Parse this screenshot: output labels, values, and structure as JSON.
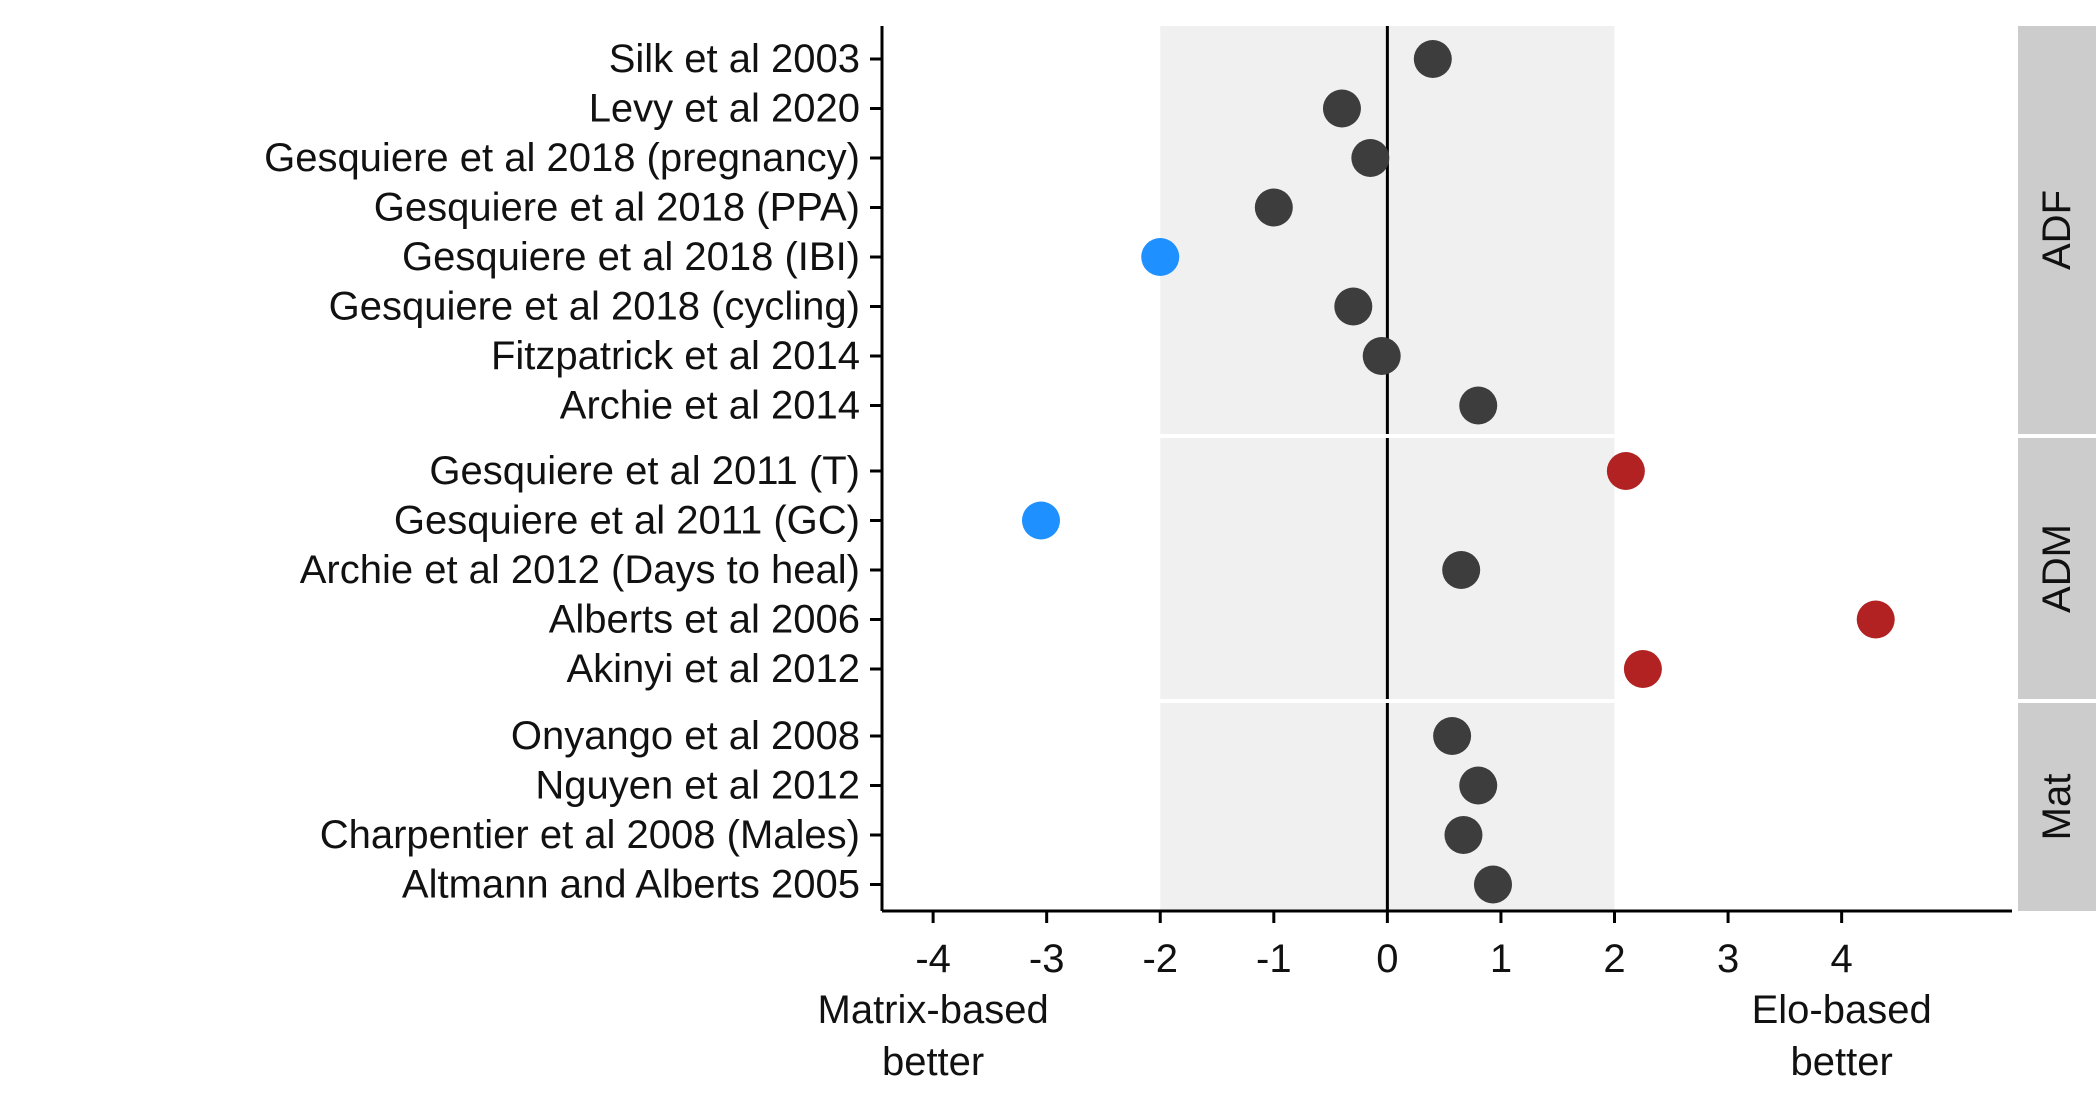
{
  "chart_data": {
    "type": "scatter",
    "orientation": "horizontal",
    "xlim": [
      -4.45,
      5.5
    ],
    "xticks": [
      -4,
      -3,
      -2,
      -1,
      0,
      1,
      2,
      3,
      4
    ],
    "tick_labels": [
      "-4",
      "-3",
      "-2",
      "-1",
      "0",
      "1",
      "2",
      "3",
      "4"
    ],
    "shaded_band": [
      -2,
      2
    ],
    "reference_line": 0,
    "annotations": {
      "left": [
        "Matrix-based",
        "better"
      ],
      "right": [
        "Elo-based",
        "better"
      ]
    },
    "colors": {
      "neutral": "#3d3d3d",
      "matrix_better": "#1e90ff",
      "elo_better": "#b22222",
      "band": "#f0f0f0",
      "strip": "#cccccc"
    },
    "panels": [
      {
        "strip_label": "ADF",
        "rows": [
          {
            "label": "Silk et al 2003",
            "value": 0.4,
            "group": "neutral"
          },
          {
            "label": "Levy et al 2020",
            "value": -0.4,
            "group": "neutral"
          },
          {
            "label": "Gesquiere et al 2018 (pregnancy)",
            "value": -0.15,
            "group": "neutral"
          },
          {
            "label": "Gesquiere et al 2018 (PPA)",
            "value": -1.0,
            "group": "neutral"
          },
          {
            "label": "Gesquiere et al 2018 (IBI)",
            "value": -2.0,
            "group": "matrix_better"
          },
          {
            "label": "Gesquiere et al 2018 (cycling)",
            "value": -0.3,
            "group": "neutral"
          },
          {
            "label": "Fitzpatrick et al 2014",
            "value": -0.05,
            "group": "neutral"
          },
          {
            "label": "Archie et al 2014",
            "value": 0.8,
            "group": "neutral"
          }
        ]
      },
      {
        "strip_label": "ADM",
        "rows": [
          {
            "label": "Gesquiere et al 2011 (T)",
            "value": 2.1,
            "group": "elo_better"
          },
          {
            "label": "Gesquiere et al 2011 (GC)",
            "value": -3.05,
            "group": "matrix_better"
          },
          {
            "label": "Archie et al 2012 (Days to heal)",
            "value": 0.65,
            "group": "neutral"
          },
          {
            "label": "Alberts et al 2006",
            "value": 4.3,
            "group": "elo_better"
          },
          {
            "label": "Akinyi et al 2012",
            "value": 2.25,
            "group": "elo_better"
          }
        ]
      },
      {
        "strip_label": "Mat",
        "rows": [
          {
            "label": "Onyango et al 2008",
            "value": 0.57,
            "group": "neutral"
          },
          {
            "label": "Nguyen et al 2012",
            "value": 0.8,
            "group": "neutral"
          },
          {
            "label": "Charpentier et al 2008 (Males)",
            "value": 0.67,
            "group": "neutral"
          },
          {
            "label": "Altmann and Alberts 2005",
            "value": 0.93,
            "group": "neutral"
          }
        ]
      }
    ]
  }
}
